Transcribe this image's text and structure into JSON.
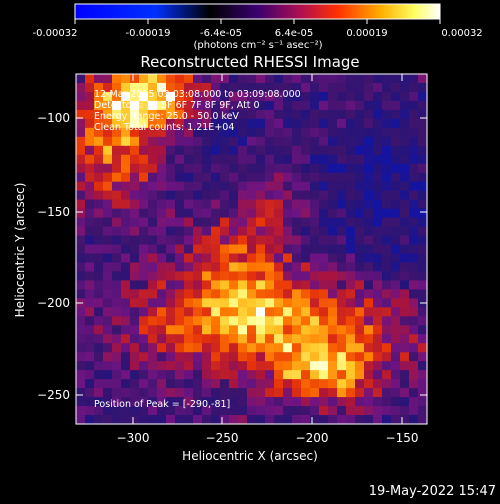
{
  "colorbar": {
    "tick_labels": [
      "-0.00032",
      "-0.00019",
      "-6.4e-05",
      "6.4e-05",
      "0.00019",
      "0.00032"
    ],
    "units_label": "(photons cm⁻² s⁻¹ asec⁻²)",
    "palette": [
      "#0000ff",
      "#0020ff",
      "#000000",
      "#300060",
      "#7a1090",
      "#c02020",
      "#ff5a00",
      "#ffc000",
      "#ffff80",
      "#ffffff"
    ]
  },
  "title": "Reconstructed RHESSI Image",
  "info": {
    "line1": "12-Mar-2015 03:03:08.000 to 03:09:08.000",
    "line2": "Detectors: 3F 5F 6F 7F 8F 9F, Att 0",
    "line3": "Energy Range: 25.0 - 50.0 keV",
    "line4": "Clean    Total counts: 1.21E+04",
    "peak": "Position of Peak = [-290,-81]"
  },
  "axes": {
    "xlabel": "Heliocentric X (arcsec)",
    "ylabel": "Heliocentric Y (arcsec)",
    "x_ticks": [
      "−300",
      "−250",
      "−200",
      "−150"
    ],
    "y_ticks": [
      "−100",
      "−150",
      "−200",
      "−250"
    ],
    "xlim": [
      -333,
      -137
    ],
    "ylim": [
      -268,
      -79
    ]
  },
  "timestamp": "19-May-2022 15:47"
}
